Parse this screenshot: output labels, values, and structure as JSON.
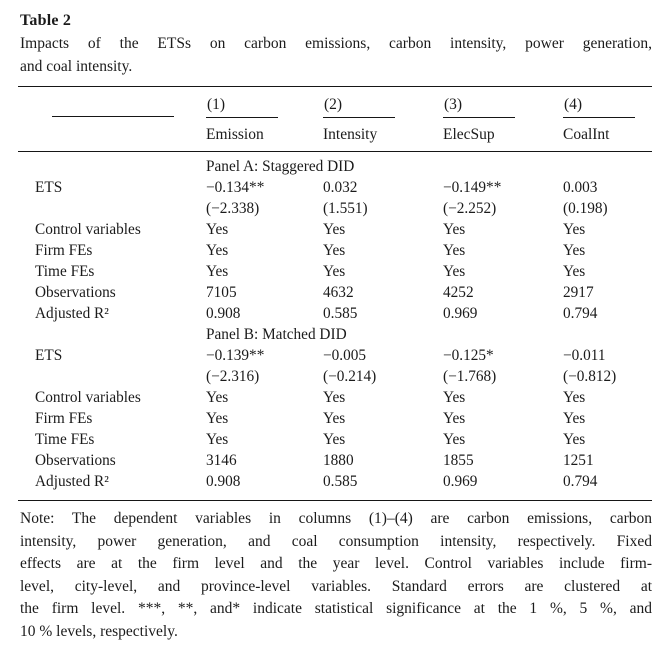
{
  "doc": {
    "title": "Table 2"
  },
  "caption": {
    "lines": [
      "Impacts of the ETSs on carbon emissions, carbon intensity, power generation,",
      "and coal intensity."
    ]
  },
  "header": {
    "numbers": [
      "(1)",
      "(2)",
      "(3)",
      "(4)"
    ],
    "names": [
      "Emission",
      "Intensity",
      "ElecSup",
      "CoalInt"
    ]
  },
  "panelA": {
    "title": "Panel A: Staggered DID",
    "rows": [
      [
        "ETS",
        "−0.134**",
        "0.032",
        "−0.149**",
        "0.003"
      ],
      [
        "",
        "(−2.338)",
        "(1.551)",
        "(−2.252)",
        "(0.198)"
      ],
      [
        "Control variables",
        "Yes",
        "Yes",
        "Yes",
        "Yes"
      ],
      [
        "Firm FEs",
        "Yes",
        "Yes",
        "Yes",
        "Yes"
      ],
      [
        "Time FEs",
        "Yes",
        "Yes",
        "Yes",
        "Yes"
      ],
      [
        "Observations",
        "7105",
        "4632",
        "4252",
        "2917"
      ],
      [
        "Adjusted R²",
        "0.908",
        "0.585",
        "0.969",
        "0.794"
      ]
    ]
  },
  "panelB": {
    "title": "Panel B: Matched DID",
    "rows": [
      [
        "ETS",
        "−0.139**",
        "−0.005",
        "−0.125*",
        "−0.011"
      ],
      [
        "",
        "(−2.316)",
        "(−0.214)",
        "(−1.768)",
        "(−0.812)"
      ],
      [
        "Control variables",
        "Yes",
        "Yes",
        "Yes",
        "Yes"
      ],
      [
        "Firm FEs",
        "Yes",
        "Yes",
        "Yes",
        "Yes"
      ],
      [
        "Time FEs",
        "Yes",
        "Yes",
        "Yes",
        "Yes"
      ],
      [
        "Observations",
        "3146",
        "1880",
        "1855",
        "1251"
      ],
      [
        "Adjusted R²",
        "0.908",
        "0.585",
        "0.969",
        "0.794"
      ]
    ]
  },
  "note": {
    "lines": [
      "Note: The dependent variables in columns (1)–(4) are carbon emissions, carbon",
      "intensity, power generation, and coal consumption intensity, respectively. Fixed",
      "effects are at the firm level and the year level. Control variables include firm-",
      "level, city-level, and province-level variables. Standard errors are clustered at",
      "the firm level. ***, **, and* indicate statistical significance at the 1 %, 5 %, and",
      "10 % levels, respectively."
    ]
  },
  "colors": {
    "text": "#1b1b1b",
    "rule": "#161616",
    "background": "#ffffff"
  }
}
